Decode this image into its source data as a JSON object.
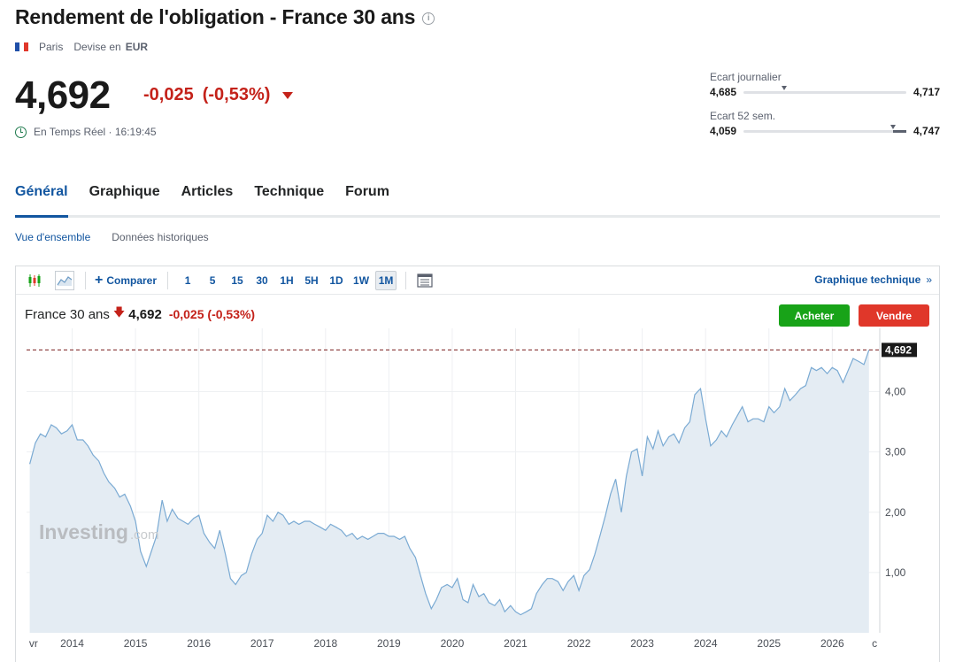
{
  "header": {
    "title": "Rendement de l'obligation - France 30 ans",
    "city": "Paris",
    "currency_label": "Devise en",
    "currency": "EUR"
  },
  "quote": {
    "price": "4,692",
    "change": "-0,025",
    "change_pct": "(-0,53%)",
    "realtime_label": "En Temps Réel",
    "separator": "·",
    "time": "16:19:45"
  },
  "ranges": {
    "daily": {
      "label": "Ecart journalier",
      "low": "4,685",
      "high": "4,717",
      "position": 0.25
    },
    "week52": {
      "label": "Ecart 52 sem.",
      "low": "4,059",
      "high": "4,747",
      "position": 0.92
    }
  },
  "tabs": [
    {
      "label": "Général",
      "active": true
    },
    {
      "label": "Graphique",
      "active": false
    },
    {
      "label": "Articles",
      "active": false
    },
    {
      "label": "Technique",
      "active": false
    },
    {
      "label": "Forum",
      "active": false
    }
  ],
  "subtabs": [
    {
      "label": "Vue d'ensemble",
      "active": true
    },
    {
      "label": "Données historiques",
      "active": false
    }
  ],
  "toolbar": {
    "compare_label": "Comparer",
    "periods": [
      "1",
      "5",
      "15",
      "30",
      "1H",
      "5H",
      "1D",
      "1W",
      "1M"
    ],
    "active_period": "1M",
    "tech_link": "Graphique technique",
    "tech_link_arrow": "»"
  },
  "chart_header": {
    "name": "France 30 ans",
    "arrow": "🡇",
    "price": "4,692",
    "change": "-0,025",
    "change_pct": "(-0,53%)",
    "buy_label": "Acheter",
    "sell_label": "Vendre"
  },
  "chart_data": {
    "type": "area",
    "title": "",
    "xlabel": "",
    "ylabel": "",
    "x_tick_labels": [
      "vr",
      "2014",
      "2015",
      "2016",
      "2017",
      "2018",
      "2019",
      "2020",
      "2021",
      "2022",
      "2023",
      "2024",
      "2025",
      "2026",
      "c"
    ],
    "y_tick_labels": [
      "1,00",
      "2,00",
      "3,00",
      "4,00"
    ],
    "y_ticks": [
      1,
      2,
      3,
      4
    ],
    "ylim": [
      0,
      5.05
    ],
    "xlim": [
      2013.28,
      2026.75
    ],
    "last_value_label": "4,692",
    "last_value": 4.692,
    "watermark": "Investing",
    "watermark_suffix": ".com",
    "colors": {
      "line": "#7aaad3",
      "fill": "#e4ecf3",
      "last_line": "#7a1e1e",
      "label_bg": "#1a1a1a",
      "grid": "#eef0f2"
    },
    "series": [
      {
        "x": [
          2013.33,
          2013.42,
          2013.5,
          2013.58,
          2013.67,
          2013.75,
          2013.83,
          2013.92,
          2014.0,
          2014.08,
          2014.17,
          2014.25,
          2014.33,
          2014.42,
          2014.5,
          2014.58,
          2014.67,
          2014.75,
          2014.83,
          2014.92,
          2015.0,
          2015.08,
          2015.17,
          2015.25,
          2015.33,
          2015.42,
          2015.5,
          2015.58,
          2015.67,
          2015.75,
          2015.83,
          2015.92,
          2016.0,
          2016.08,
          2016.17,
          2016.25,
          2016.33,
          2016.42,
          2016.5,
          2016.58,
          2016.67,
          2016.75,
          2016.83,
          2016.92,
          2017.0,
          2017.08,
          2017.17,
          2017.25,
          2017.33,
          2017.42,
          2017.5,
          2017.58,
          2017.67,
          2017.75,
          2017.83,
          2017.92,
          2018.0,
          2018.08,
          2018.17,
          2018.25,
          2018.33,
          2018.42,
          2018.5,
          2018.58,
          2018.67,
          2018.75,
          2018.83,
          2018.92,
          2019.0,
          2019.08,
          2019.17,
          2019.25,
          2019.33,
          2019.42,
          2019.5,
          2019.58,
          2019.67,
          2019.75,
          2019.83,
          2019.92,
          2020.0,
          2020.08,
          2020.17,
          2020.25,
          2020.33,
          2020.42,
          2020.5,
          2020.58,
          2020.67,
          2020.75,
          2020.83,
          2020.92,
          2021.0,
          2021.08,
          2021.17,
          2021.25,
          2021.33,
          2021.42,
          2021.5,
          2021.58,
          2021.67,
          2021.75,
          2021.83,
          2021.92,
          2022.0,
          2022.08,
          2022.17,
          2022.25,
          2022.33,
          2022.42,
          2022.5,
          2022.58,
          2022.67,
          2022.75,
          2022.83,
          2022.92,
          2023.0,
          2023.08,
          2023.17,
          2023.25,
          2023.33,
          2023.42,
          2023.5,
          2023.58,
          2023.67,
          2023.75,
          2023.83,
          2023.92,
          2024.0,
          2024.08,
          2024.17,
          2024.25,
          2024.33,
          2024.42,
          2024.5,
          2024.58,
          2024.67,
          2024.75,
          2024.83,
          2024.92,
          2025.0,
          2025.08,
          2025.17,
          2025.25,
          2025.33,
          2025.42,
          2025.5,
          2025.58,
          2025.67,
          2025.75,
          2025.83,
          2025.92,
          2026.0,
          2026.08,
          2026.17,
          2026.25,
          2026.33,
          2026.42,
          2026.5,
          2026.58
        ],
        "values": [
          2.8,
          3.15,
          3.3,
          3.25,
          3.45,
          3.4,
          3.3,
          3.35,
          3.45,
          3.2,
          3.2,
          3.1,
          2.95,
          2.85,
          2.65,
          2.5,
          2.4,
          2.25,
          2.3,
          2.1,
          1.85,
          1.35,
          1.1,
          1.35,
          1.6,
          2.2,
          1.85,
          2.05,
          1.9,
          1.85,
          1.8,
          1.9,
          1.95,
          1.65,
          1.5,
          1.4,
          1.7,
          1.3,
          0.9,
          0.8,
          0.95,
          1.0,
          1.3,
          1.55,
          1.65,
          1.95,
          1.85,
          2.0,
          1.95,
          1.8,
          1.85,
          1.8,
          1.85,
          1.85,
          1.8,
          1.75,
          1.7,
          1.8,
          1.75,
          1.7,
          1.6,
          1.65,
          1.55,
          1.6,
          1.55,
          1.6,
          1.65,
          1.65,
          1.6,
          1.6,
          1.55,
          1.6,
          1.4,
          1.25,
          0.95,
          0.65,
          0.4,
          0.55,
          0.75,
          0.8,
          0.75,
          0.9,
          0.55,
          0.5,
          0.8,
          0.6,
          0.65,
          0.5,
          0.45,
          0.55,
          0.35,
          0.45,
          0.35,
          0.3,
          0.35,
          0.4,
          0.65,
          0.8,
          0.9,
          0.9,
          0.85,
          0.7,
          0.85,
          0.95,
          0.7,
          0.95,
          1.05,
          1.3,
          1.6,
          1.95,
          2.3,
          2.55,
          2.0,
          2.6,
          3.0,
          3.05,
          2.6,
          3.25,
          3.05,
          3.35,
          3.1,
          3.25,
          3.3,
          3.15,
          3.4,
          3.5,
          3.95,
          4.05,
          3.55,
          3.1,
          3.2,
          3.35,
          3.25,
          3.45,
          3.6,
          3.75,
          3.5,
          3.55,
          3.55,
          3.5,
          3.75,
          3.65,
          3.75,
          4.05,
          3.85,
          3.95,
          4.05,
          4.1,
          4.4,
          4.35,
          4.4,
          4.3,
          4.4,
          4.35,
          4.15,
          4.35,
          4.55,
          4.5,
          4.45,
          4.692
        ]
      }
    ]
  }
}
